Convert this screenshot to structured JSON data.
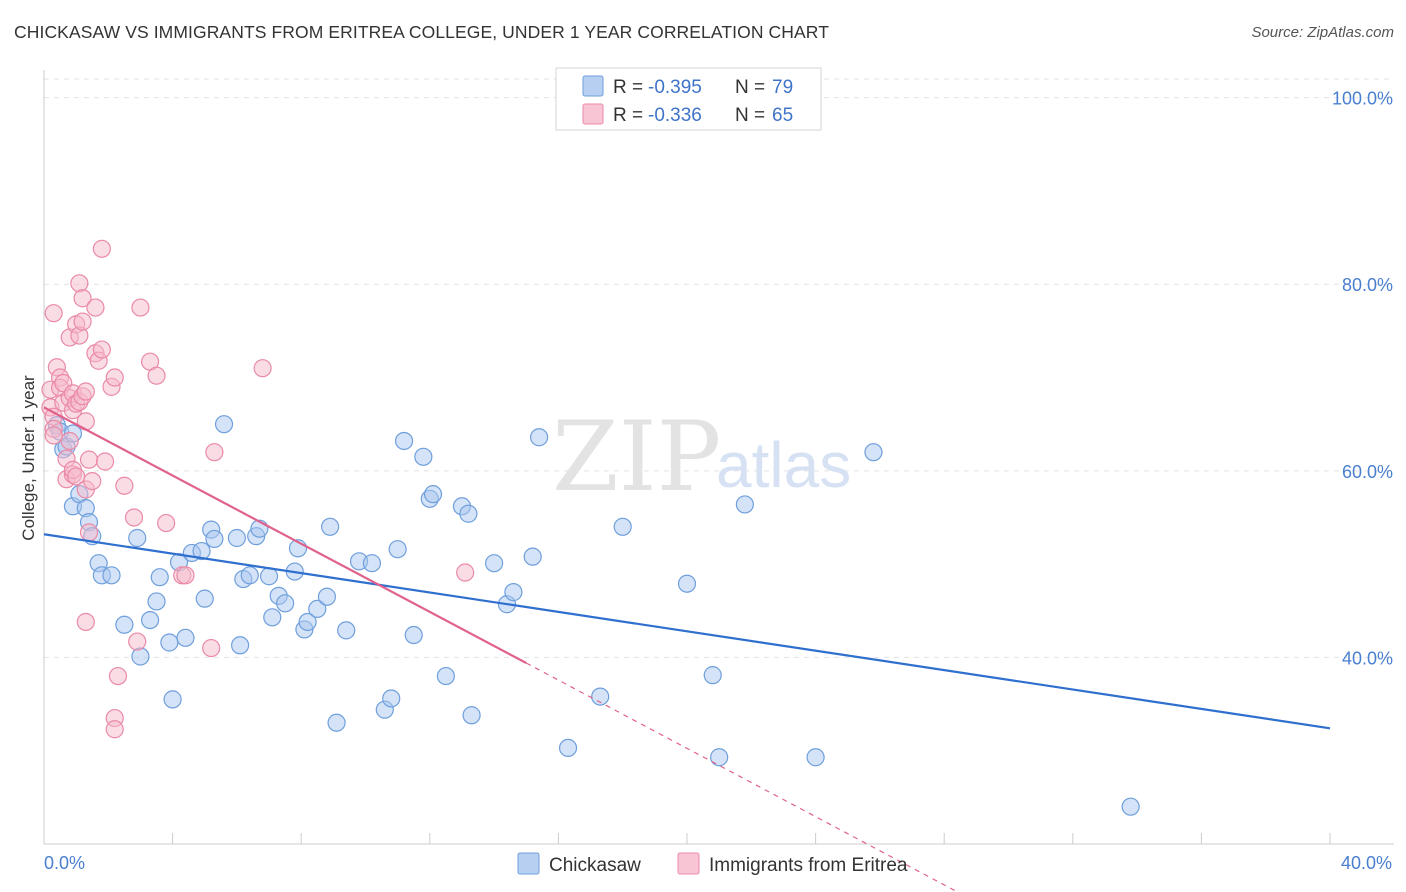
{
  "title": "CHICKASAW VS IMMIGRANTS FROM ERITREA COLLEGE, UNDER 1 YEAR CORRELATION CHART",
  "source": "Source: ZipAtlas.com",
  "watermark": {
    "zip": "ZIP",
    "atlas": "atlas"
  },
  "legend": {
    "rows": [
      {
        "r_label": "R = ",
        "r_value": "-0.395",
        "n_label": "N = ",
        "n_value": "79"
      },
      {
        "r_label": "R = ",
        "r_value": "-0.336",
        "n_label": "N = ",
        "n_value": "65"
      }
    ]
  },
  "colors": {
    "blue_fill": "#a9c8ef",
    "blue_stroke": "#6f9fdc",
    "blue_line": "#2f6fce",
    "pink_fill": "#f5b9cc",
    "pink_stroke": "#ea8aa7",
    "pink_line": "#e0628c",
    "tick_label": "#4a7fd0"
  },
  "chart_data": {
    "type": "scatter",
    "title": "CHICKASAW VS IMMIGRANTS FROM ERITREA COLLEGE, UNDER 1 YEAR CORRELATION CHART",
    "xlabel": "",
    "ylabel": "College, Under 1 year",
    "xlim": [
      0,
      40
    ],
    "ylim": [
      20,
      102
    ],
    "x_tick_labels": [
      "0.0%",
      "40.0%"
    ],
    "y_tick_values": [
      40,
      60,
      80,
      100
    ],
    "y_tick_labels": [
      "40.0%",
      "60.0%",
      "80.0%",
      "100.0%"
    ],
    "grid": true,
    "legend_position": "top-center",
    "series": [
      {
        "name": "Chickasaw",
        "color": "#a9c8ef",
        "points": [
          [
            0.4,
            64.9
          ],
          [
            0.5,
            64.2
          ],
          [
            0.6,
            62.3
          ],
          [
            0.7,
            62.6
          ],
          [
            0.9,
            64.0
          ],
          [
            0.9,
            56.2
          ],
          [
            1.1,
            57.5
          ],
          [
            1.3,
            56.0
          ],
          [
            1.4,
            54.5
          ],
          [
            1.5,
            53.0
          ],
          [
            1.7,
            50.1
          ],
          [
            1.8,
            48.8
          ],
          [
            2.1,
            48.8
          ],
          [
            2.5,
            43.5
          ],
          [
            2.9,
            52.8
          ],
          [
            3.0,
            40.1
          ],
          [
            3.3,
            44.0
          ],
          [
            3.5,
            46.0
          ],
          [
            3.6,
            48.6
          ],
          [
            3.9,
            41.6
          ],
          [
            4.0,
            35.5
          ],
          [
            4.2,
            50.2
          ],
          [
            4.4,
            42.1
          ],
          [
            4.6,
            51.2
          ],
          [
            4.9,
            51.4
          ],
          [
            5.0,
            46.3
          ],
          [
            5.2,
            53.7
          ],
          [
            5.3,
            52.7
          ],
          [
            5.6,
            65.0
          ],
          [
            6.0,
            52.8
          ],
          [
            6.1,
            41.3
          ],
          [
            6.2,
            48.4
          ],
          [
            6.4,
            48.8
          ],
          [
            6.6,
            53.0
          ],
          [
            6.7,
            53.8
          ],
          [
            7.0,
            48.7
          ],
          [
            7.1,
            44.3
          ],
          [
            7.3,
            46.6
          ],
          [
            7.5,
            45.8
          ],
          [
            7.8,
            49.2
          ],
          [
            7.9,
            51.7
          ],
          [
            8.1,
            43.0
          ],
          [
            8.2,
            43.8
          ],
          [
            8.5,
            45.2
          ],
          [
            8.8,
            46.5
          ],
          [
            8.9,
            54.0
          ],
          [
            9.1,
            33.0
          ],
          [
            9.4,
            42.9
          ],
          [
            9.8,
            50.3
          ],
          [
            10.2,
            50.1
          ],
          [
            10.6,
            34.4
          ],
          [
            10.8,
            35.6
          ],
          [
            11.0,
            51.6
          ],
          [
            11.2,
            63.2
          ],
          [
            11.5,
            42.4
          ],
          [
            11.8,
            61.5
          ],
          [
            12.0,
            57.0
          ],
          [
            12.1,
            57.5
          ],
          [
            12.5,
            38.0
          ],
          [
            13.0,
            56.2
          ],
          [
            13.2,
            55.4
          ],
          [
            13.3,
            33.8
          ],
          [
            14.0,
            50.1
          ],
          [
            14.4,
            45.7
          ],
          [
            14.6,
            47.0
          ],
          [
            15.2,
            50.8
          ],
          [
            15.4,
            63.6
          ],
          [
            16.3,
            30.3
          ],
          [
            17.3,
            35.8
          ],
          [
            18.0,
            54.0
          ],
          [
            20.0,
            47.9
          ],
          [
            20.8,
            38.1
          ],
          [
            21.0,
            29.3
          ],
          [
            21.8,
            56.4
          ],
          [
            24.0,
            29.3
          ],
          [
            25.8,
            62.0
          ],
          [
            33.8,
            24.0
          ]
        ],
        "trend": [
          [
            0,
            53.2
          ],
          [
            40,
            32.4
          ]
        ]
      },
      {
        "name": "Immigrants from Eritrea",
        "color": "#f5b9cc",
        "points": [
          [
            0.2,
            68.7
          ],
          [
            0.2,
            66.8
          ],
          [
            0.3,
            65.8
          ],
          [
            0.3,
            64.5
          ],
          [
            0.3,
            63.8
          ],
          [
            0.3,
            76.9
          ],
          [
            0.4,
            71.1
          ],
          [
            0.5,
            70.0
          ],
          [
            0.5,
            68.9
          ],
          [
            0.6,
            69.4
          ],
          [
            0.6,
            67.3
          ],
          [
            0.7,
            59.1
          ],
          [
            0.7,
            61.3
          ],
          [
            0.8,
            67.8
          ],
          [
            0.8,
            74.3
          ],
          [
            0.8,
            63.2
          ],
          [
            0.9,
            68.3
          ],
          [
            0.9,
            66.5
          ],
          [
            0.9,
            59.6
          ],
          [
            0.9,
            60.1
          ],
          [
            1.0,
            59.4
          ],
          [
            1.0,
            67.2
          ],
          [
            1.0,
            75.7
          ],
          [
            1.1,
            80.1
          ],
          [
            1.1,
            74.5
          ],
          [
            1.1,
            67.4
          ],
          [
            1.2,
            76.0
          ],
          [
            1.2,
            68.0
          ],
          [
            1.2,
            78.5
          ],
          [
            1.3,
            68.5
          ],
          [
            1.3,
            65.3
          ],
          [
            1.3,
            58.0
          ],
          [
            1.3,
            43.8
          ],
          [
            1.4,
            61.2
          ],
          [
            1.4,
            53.4
          ],
          [
            1.5,
            58.9
          ],
          [
            1.6,
            77.5
          ],
          [
            1.6,
            72.6
          ],
          [
            1.7,
            71.8
          ],
          [
            1.8,
            73.0
          ],
          [
            1.8,
            83.8
          ],
          [
            1.9,
            61.0
          ],
          [
            2.1,
            69.0
          ],
          [
            2.2,
            70.0
          ],
          [
            2.2,
            33.5
          ],
          [
            2.2,
            32.3
          ],
          [
            2.3,
            38.0
          ],
          [
            2.5,
            58.4
          ],
          [
            2.8,
            55.0
          ],
          [
            2.9,
            41.7
          ],
          [
            3.0,
            77.5
          ],
          [
            3.3,
            71.7
          ],
          [
            3.5,
            70.2
          ],
          [
            3.8,
            54.4
          ],
          [
            4.3,
            48.8
          ],
          [
            4.4,
            48.8
          ],
          [
            5.2,
            41.0
          ],
          [
            5.3,
            62.0
          ],
          [
            6.8,
            71.0
          ],
          [
            13.1,
            49.1
          ]
        ],
        "trend": [
          [
            0,
            66.8
          ],
          [
            15.0,
            39.4
          ]
        ],
        "trend_extension": [
          [
            15.0,
            39.4
          ],
          [
            28.5,
            14.7
          ]
        ]
      }
    ]
  },
  "bottom_legend": [
    {
      "label": "Chickasaw"
    },
    {
      "label": "Immigrants from Eritrea"
    }
  ]
}
